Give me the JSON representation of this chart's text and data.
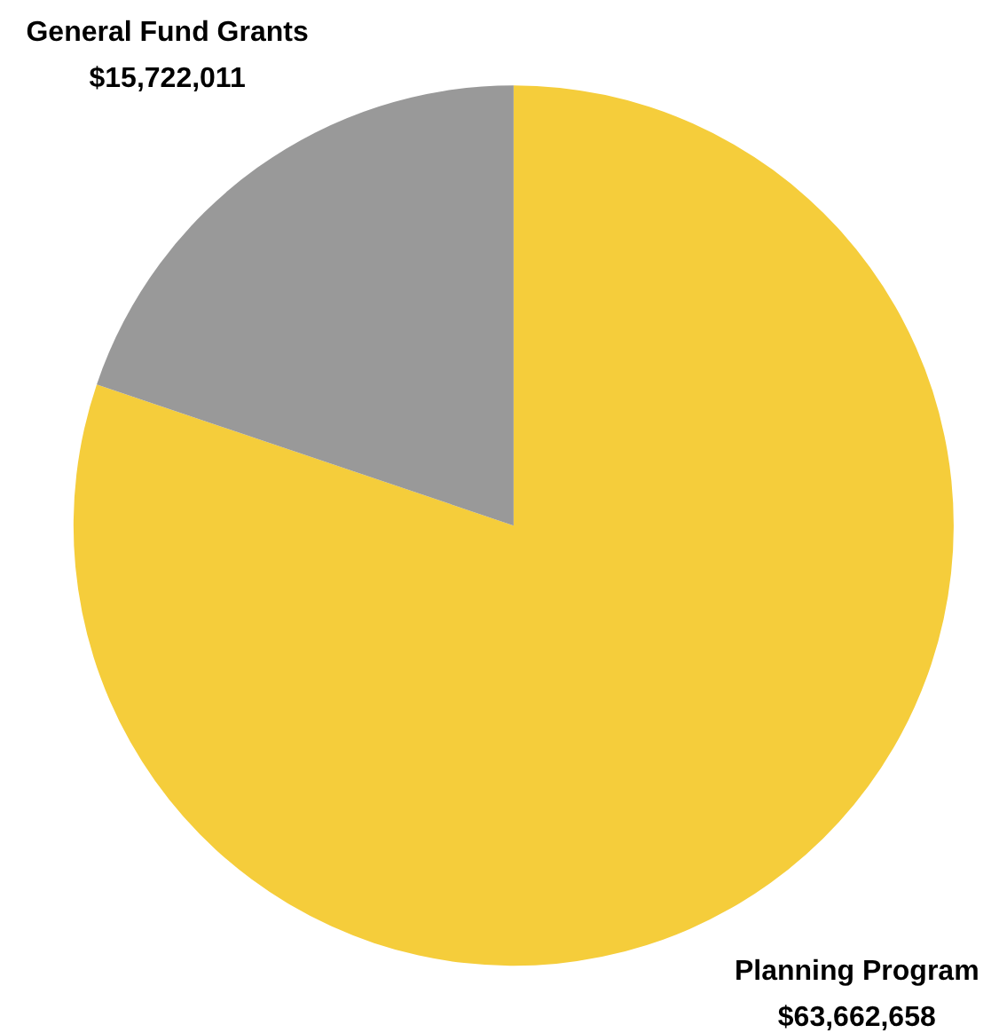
{
  "chart_data": {
    "type": "pie",
    "categories": [
      "Planning Program",
      "General Fund Grants"
    ],
    "values": [
      63662658,
      15722011
    ],
    "colors": [
      "#f5cd3b",
      "#999999"
    ],
    "value_labels": [
      "$63,662,658",
      "$15,722,011"
    ]
  }
}
